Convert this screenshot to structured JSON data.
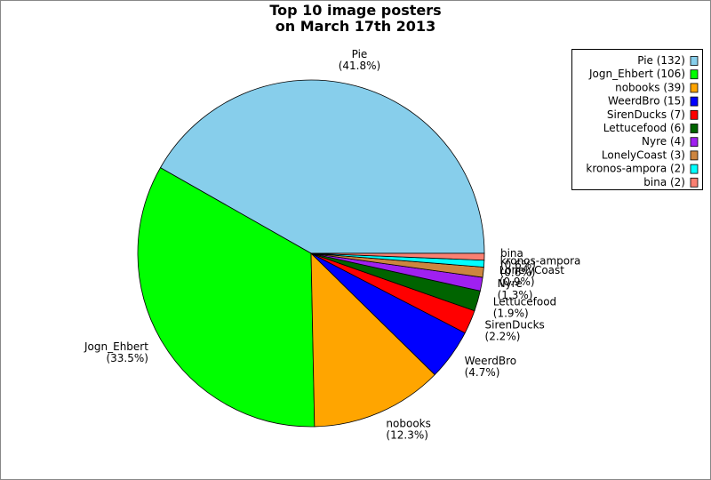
{
  "chart_data": {
    "type": "pie",
    "title": [
      "Top 10 image posters",
      "on March 17th 2013"
    ],
    "categories": [
      "Pie",
      "Jogn_Ehbert",
      "nobooks",
      "WeerdBro",
      "SirenDucks",
      "Lettucefood",
      "Nyre",
      "LonelyCoast",
      "kronos-ampora",
      "bina"
    ],
    "values": [
      132,
      106,
      39,
      15,
      7,
      6,
      4,
      3,
      2,
      2
    ],
    "value_labels": [
      "(41.8%)",
      "(33.5%)",
      "(12.3%)",
      "(4.7%)",
      "(2.2%)",
      "(1.9%)",
      "(1.3%)",
      "(0.9%)",
      "(0.6%)",
      "(0.6%)"
    ],
    "legend_labels": [
      "Pie (132)",
      "Jogn_Ehbert (106)",
      "nobooks (39)",
      "WeerdBro (15)",
      "SirenDucks (7)",
      "Lettucefood (6)",
      "Nyre (4)",
      "LonelyCoast (3)",
      "kronos-ampora (2)",
      "bina (2)"
    ],
    "colors": [
      "#87ceeb",
      "#00ff00",
      "#ffa500",
      "#0000ff",
      "#ff0000",
      "#006400",
      "#a020f0",
      "#cd853f",
      "#00ffff",
      "#fa8072"
    ],
    "legend": "upper right"
  }
}
